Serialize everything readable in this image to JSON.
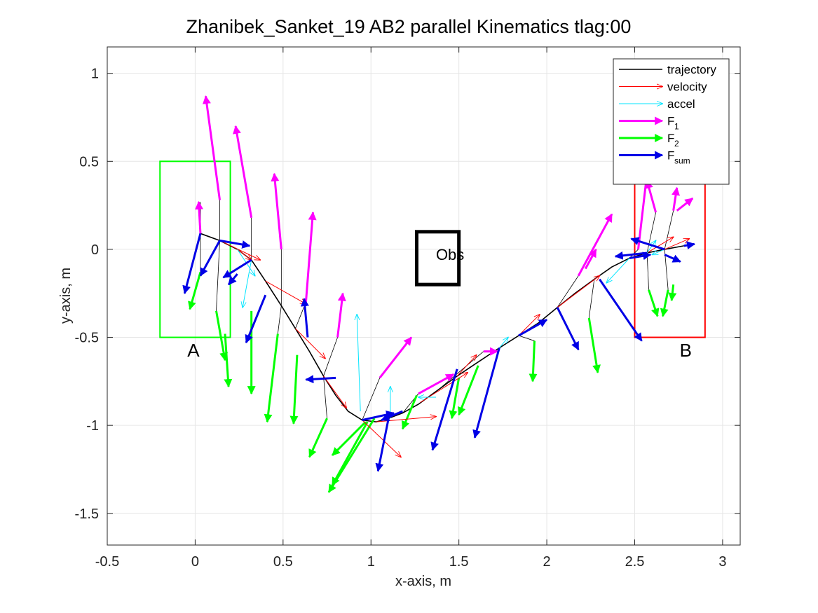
{
  "chart_data": {
    "type": "vector-field",
    "title": "Zhanibek_Sanket_19    AB2    parallel    Kinematics tlag:00",
    "xlabel": "x-axis, m",
    "ylabel": "y-axis, m",
    "xlim": [
      -0.5,
      3.1
    ],
    "ylim": [
      -1.68,
      1.15
    ],
    "xticks": [
      -0.5,
      0,
      0.5,
      1,
      1.5,
      2,
      2.5,
      3
    ],
    "xtick_labels": [
      "-0.5",
      "0",
      "0.5",
      "1",
      "1.5",
      "2",
      "2.5",
      "3"
    ],
    "yticks": [
      -1.5,
      -1,
      -0.5,
      0,
      0.5,
      1
    ],
    "ytick_labels": [
      "-1.5",
      "-1",
      "-0.5",
      "0",
      "0.5",
      "1"
    ],
    "grid": true,
    "legend_position": "top-right",
    "colors": {
      "trajectory": "#000000",
      "velocity": "#ff0000",
      "accel": "#00e5ff",
      "F1": "#ff00ff",
      "F2": "#00ff00",
      "Fsum": "#0000e6",
      "regionA": "#00ff00",
      "regionB": "#ff0000",
      "obstacle": "#000000"
    },
    "legend": [
      {
        "key": "trajectory",
        "label": "trajectory",
        "sub": ""
      },
      {
        "key": "velocity",
        "label": "velocity",
        "sub": ""
      },
      {
        "key": "accel",
        "label": "accel",
        "sub": ""
      },
      {
        "key": "F1",
        "label": "F",
        "sub": "1"
      },
      {
        "key": "F2",
        "label": "F",
        "sub": "2"
      },
      {
        "key": "Fsum",
        "label": "F",
        "sub": "sum"
      }
    ],
    "regions": [
      {
        "name": "regionA",
        "label": "A",
        "x0": -0.2,
        "x1": 0.2,
        "y0": -0.5,
        "y1": 0.5,
        "label_x": -0.01,
        "label_y": -0.61
      },
      {
        "name": "regionB",
        "label": "B",
        "x0": 2.5,
        "x1": 2.9,
        "y0": -0.5,
        "y1": 0.4,
        "label_x": 2.79,
        "label_y": -0.61
      }
    ],
    "obstacle": {
      "label": "Obs",
      "x0": 1.26,
      "x1": 1.5,
      "y0": -0.2,
      "y1": 0.1,
      "label_x": 1.45,
      "label_y": -0.06
    },
    "trajectory": [
      [
        0.03,
        0.09
      ],
      [
        0.14,
        0.05
      ],
      [
        0.24,
        0.0
      ],
      [
        0.32,
        -0.06
      ],
      [
        0.4,
        -0.18
      ],
      [
        0.49,
        -0.32
      ],
      [
        0.57,
        -0.45
      ],
      [
        0.65,
        -0.58
      ],
      [
        0.73,
        -0.72
      ],
      [
        0.8,
        -0.83
      ],
      [
        0.87,
        -0.92
      ],
      [
        0.95,
        -0.97
      ],
      [
        1.03,
        -0.98
      ],
      [
        1.1,
        -0.96
      ],
      [
        1.18,
        -0.93
      ],
      [
        1.27,
        -0.88
      ],
      [
        1.38,
        -0.8
      ],
      [
        1.49,
        -0.72
      ],
      [
        1.61,
        -0.64
      ],
      [
        1.73,
        -0.56
      ],
      [
        1.84,
        -0.49
      ],
      [
        1.95,
        -0.42
      ],
      [
        2.06,
        -0.33
      ],
      [
        2.16,
        -0.25
      ],
      [
        2.27,
        -0.17
      ],
      [
        2.37,
        -0.1
      ],
      [
        2.47,
        -0.05
      ],
      [
        2.57,
        -0.02
      ],
      [
        2.67,
        0.0
      ],
      [
        2.78,
        0.02
      ]
    ],
    "series": [
      {
        "name": "F1",
        "arrows": [
          [
            0.03,
            0.09,
            0.02,
            0.27
          ],
          [
            0.14,
            0.28,
            0.06,
            0.87
          ],
          [
            0.32,
            0.18,
            0.23,
            0.7
          ],
          [
            0.49,
            0.0,
            0.45,
            0.43
          ],
          [
            0.63,
            -0.3,
            0.67,
            0.21
          ],
          [
            0.81,
            -0.5,
            0.84,
            -0.25
          ],
          [
            1.05,
            -0.73,
            1.23,
            -0.5
          ],
          [
            1.27,
            -0.82,
            1.47,
            -0.71
          ],
          [
            1.64,
            -0.58,
            1.72,
            -0.58
          ],
          [
            2.18,
            -0.15,
            2.37,
            0.2
          ],
          [
            2.22,
            -0.11,
            2.28,
            0.0
          ],
          [
            2.52,
            0.0,
            2.57,
            0.43
          ],
          [
            2.62,
            0.21,
            2.57,
            0.39
          ],
          [
            2.72,
            0.22,
            2.74,
            0.35
          ],
          [
            2.74,
            0.22,
            2.83,
            0.29
          ]
        ]
      },
      {
        "name": "F2",
        "arrows": [
          [
            0.03,
            -0.13,
            -0.03,
            -0.34
          ],
          [
            0.12,
            -0.35,
            0.17,
            -0.63
          ],
          [
            0.17,
            -0.48,
            0.19,
            -0.78
          ],
          [
            0.32,
            -0.35,
            0.32,
            -0.82
          ],
          [
            0.47,
            -0.48,
            0.41,
            -0.98
          ],
          [
            0.58,
            -0.6,
            0.56,
            -0.99
          ],
          [
            0.75,
            -0.96,
            0.65,
            -1.18
          ],
          [
            0.97,
            -0.98,
            0.78,
            -1.17
          ],
          [
            1.02,
            -0.96,
            0.76,
            -1.38
          ],
          [
            0.98,
            -0.98,
            0.78,
            -1.34
          ],
          [
            1.26,
            -0.83,
            1.18,
            -1.02
          ],
          [
            1.5,
            -0.73,
            1.46,
            -0.96
          ],
          [
            1.61,
            -0.66,
            1.5,
            -0.94
          ],
          [
            1.93,
            -0.52,
            1.92,
            -0.75
          ],
          [
            2.24,
            -0.39,
            2.29,
            -0.7
          ],
          [
            2.58,
            -0.23,
            2.63,
            -0.38
          ],
          [
            2.69,
            -0.23,
            2.66,
            -0.38
          ],
          [
            2.72,
            -0.2,
            2.71,
            -0.29
          ]
        ]
      },
      {
        "name": "Fsum",
        "arrows": [
          [
            0.03,
            0.09,
            -0.06,
            -0.25
          ],
          [
            0.14,
            0.05,
            0.03,
            -0.15
          ],
          [
            0.14,
            0.05,
            0.31,
            0.02
          ],
          [
            0.24,
            -0.14,
            0.19,
            -0.2
          ],
          [
            0.32,
            -0.06,
            0.16,
            -0.16
          ],
          [
            0.4,
            -0.26,
            0.29,
            -0.53
          ],
          [
            0.64,
            -0.5,
            0.62,
            -0.28
          ],
          [
            0.8,
            -0.73,
            0.63,
            -0.74
          ],
          [
            0.95,
            -0.97,
            1.13,
            -0.93
          ],
          [
            1.1,
            -0.96,
            1.04,
            -1.26
          ],
          [
            1.18,
            -0.92,
            1.06,
            -0.97
          ],
          [
            1.49,
            -0.68,
            1.35,
            -1.14
          ],
          [
            1.73,
            -0.56,
            1.59,
            -1.07
          ],
          [
            1.84,
            -0.49,
            2.0,
            -0.4
          ],
          [
            2.06,
            -0.33,
            2.18,
            -0.57
          ],
          [
            2.3,
            -0.17,
            2.54,
            -0.52
          ],
          [
            2.47,
            -0.05,
            2.59,
            -0.03
          ],
          [
            2.57,
            -0.02,
            2.39,
            -0.04
          ],
          [
            2.67,
            0.0,
            2.48,
            0.06
          ],
          [
            2.67,
            -0.03,
            2.76,
            -0.07
          ],
          [
            2.78,
            0.02,
            2.84,
            0.03
          ]
        ]
      },
      {
        "name": "velocity",
        "arrows": [
          [
            0.14,
            0.05,
            0.37,
            -0.06
          ],
          [
            0.24,
            0.0,
            0.32,
            -0.06
          ],
          [
            0.4,
            -0.18,
            0.63,
            -0.31
          ],
          [
            0.57,
            -0.45,
            0.74,
            -0.62
          ],
          [
            0.73,
            -0.72,
            0.86,
            -0.9
          ],
          [
            0.95,
            -0.97,
            1.17,
            -1.18
          ],
          [
            1.03,
            -0.98,
            1.37,
            -0.95
          ],
          [
            1.28,
            -0.87,
            1.55,
            -0.7
          ],
          [
            1.49,
            -0.72,
            1.6,
            -0.6
          ],
          [
            1.84,
            -0.49,
            1.96,
            -0.37
          ],
          [
            2.06,
            -0.33,
            2.3,
            -0.15
          ],
          [
            2.47,
            -0.05,
            2.58,
            -0.03
          ],
          [
            2.57,
            -0.02,
            2.72,
            0.07
          ],
          [
            2.67,
            0.0,
            2.81,
            0.06
          ]
        ]
      },
      {
        "name": "accel",
        "arrows": [
          [
            0.24,
            0.0,
            0.34,
            -0.15
          ],
          [
            0.32,
            -0.06,
            0.27,
            -0.33
          ],
          [
            0.94,
            -0.92,
            0.92,
            -0.37
          ],
          [
            1.11,
            -0.96,
            1.11,
            -0.78
          ],
          [
            1.37,
            -0.84,
            1.27,
            -0.84
          ],
          [
            1.73,
            -0.56,
            1.78,
            -0.5
          ],
          [
            2.47,
            -0.05,
            2.34,
            -0.19
          ],
          [
            2.57,
            -0.02,
            2.62,
            0.05
          ],
          [
            2.67,
            0.0,
            2.6,
            -0.03
          ]
        ]
      }
    ],
    "force_tails": [
      [
        [
          0.03,
          0.09
        ],
        [
          0.03,
          0.27
        ]
      ],
      [
        [
          0.14,
          0.05
        ],
        [
          0.14,
          0.28
        ]
      ],
      [
        [
          0.32,
          -0.06
        ],
        [
          0.32,
          0.18
        ]
      ],
      [
        [
          0.49,
          -0.32
        ],
        [
          0.49,
          0.0
        ]
      ],
      [
        [
          0.57,
          -0.45
        ],
        [
          0.63,
          -0.3
        ]
      ],
      [
        [
          0.73,
          -0.72
        ],
        [
          0.81,
          -0.5
        ]
      ],
      [
        [
          0.95,
          -0.97
        ],
        [
          1.05,
          -0.73
        ]
      ],
      [
        [
          1.18,
          -0.93
        ],
        [
          1.27,
          -0.82
        ]
      ],
      [
        [
          1.38,
          -0.8
        ],
        [
          1.64,
          -0.58
        ]
      ],
      [
        [
          2.06,
          -0.33
        ],
        [
          2.18,
          -0.15
        ]
      ],
      [
        [
          2.47,
          -0.05
        ],
        [
          2.52,
          0.0
        ]
      ],
      [
        [
          2.57,
          -0.02
        ],
        [
          2.62,
          0.21
        ]
      ],
      [
        [
          2.67,
          0.0
        ],
        [
          2.72,
          0.22
        ]
      ],
      [
        [
          0.03,
          0.09
        ],
        [
          0.03,
          -0.13
        ]
      ],
      [
        [
          0.14,
          0.05
        ],
        [
          0.12,
          -0.35
        ]
      ],
      [
        [
          0.49,
          -0.32
        ],
        [
          0.47,
          -0.48
        ]
      ],
      [
        [
          0.73,
          -0.72
        ],
        [
          0.75,
          -0.96
        ]
      ],
      [
        [
          1.84,
          -0.49
        ],
        [
          1.93,
          -0.52
        ]
      ],
      [
        [
          2.27,
          -0.17
        ],
        [
          2.24,
          -0.39
        ]
      ],
      [
        [
          2.57,
          -0.02
        ],
        [
          2.58,
          -0.23
        ]
      ],
      [
        [
          2.67,
          0.0
        ],
        [
          2.69,
          -0.23
        ]
      ]
    ]
  }
}
